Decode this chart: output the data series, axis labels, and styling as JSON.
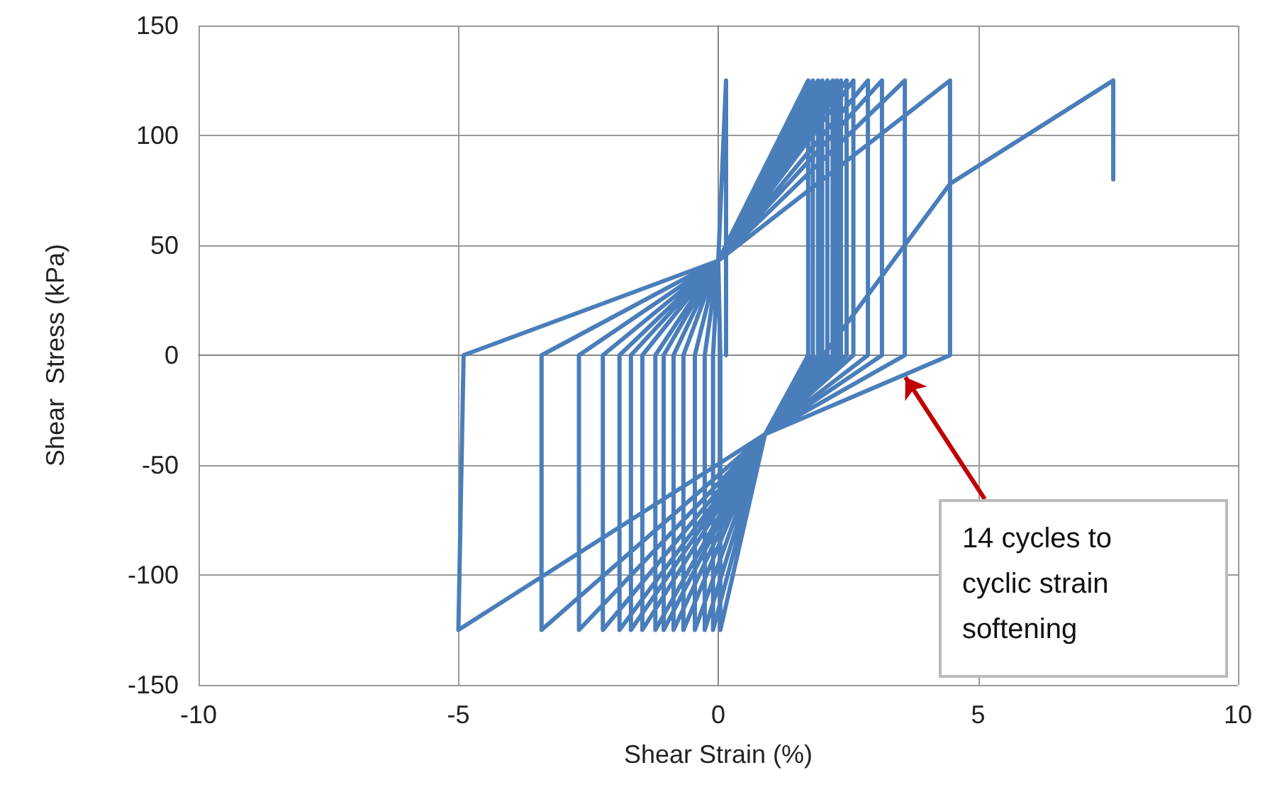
{
  "chart_data": {
    "type": "line",
    "xlabel": "Shear Strain (%)",
    "ylabel": "Shear  Stress (kPa)",
    "xlim": [
      -10,
      10
    ],
    "xticks": [
      -10,
      -5,
      0,
      5,
      10
    ],
    "ylim": [
      -150,
      150
    ],
    "yticks": [
      -150,
      -100,
      -50,
      0,
      50,
      100,
      150
    ],
    "grid": true,
    "marker": "none",
    "line_style": "solid",
    "annotations": [
      {
        "text": "14 cycles to\ncyclic strain\nsoftening",
        "x": 3.6,
        "y": -10
      }
    ],
    "series": [
      {
        "color": "#4a7ebb",
        "x": [
          0.15,
          0.15,
          0,
          0.04,
          0.04,
          0.9,
          1.73,
          1.73,
          0,
          -0.1,
          -0.1,
          0.9,
          1.82,
          1.82,
          0,
          -0.26,
          -0.26,
          0.9,
          1.92,
          1.92,
          0,
          -0.45,
          -0.45,
          0.9,
          2.0,
          2.0,
          0,
          -0.67,
          -0.67,
          0.9,
          2.1,
          2.1,
          0,
          -0.86,
          -0.86,
          0.9,
          2.2,
          2.2,
          0,
          -1.05,
          -1.05,
          0.9,
          2.28,
          2.28,
          0,
          -1.21,
          -1.21,
          0.9,
          2.36,
          2.36,
          0,
          -1.46,
          -1.46,
          0.9,
          2.47,
          2.47,
          0,
          -1.68,
          -1.68,
          0.9,
          2.6,
          2.6,
          0,
          -1.9,
          -1.9,
          0.9,
          2.88,
          2.88,
          0,
          -2.22,
          -2.22,
          0.9,
          3.15,
          3.15,
          0,
          -2.68,
          -2.68,
          0.9,
          3.59,
          3.59,
          0,
          -3.4,
          -3.4,
          0.9,
          4.46,
          4.46,
          0,
          -4.9,
          -5,
          0.9,
          4.46,
          7.6,
          7.6
        ],
        "values": [
          0,
          125,
          43,
          0,
          -125,
          -36,
          0,
          125,
          43,
          0,
          -125,
          -36,
          0,
          125,
          43,
          0,
          -125,
          -36,
          0,
          125,
          43,
          0,
          -125,
          -36,
          0,
          125,
          43,
          0,
          -125,
          -36,
          0,
          125,
          43,
          0,
          -125,
          -36,
          0,
          125,
          43,
          0,
          -125,
          -36,
          0,
          125,
          43,
          0,
          -125,
          -36,
          0,
          125,
          43,
          0,
          -125,
          -36,
          0,
          125,
          43,
          0,
          -125,
          -36,
          0,
          125,
          43,
          0,
          -125,
          -36,
          0,
          125,
          43,
          0,
          -125,
          -36,
          0,
          125,
          43,
          0,
          -125,
          -36,
          0,
          125,
          43,
          0,
          -125,
          -36,
          0,
          125,
          43,
          0,
          -125,
          -36,
          78,
          125,
          80
        ]
      }
    ]
  }
}
